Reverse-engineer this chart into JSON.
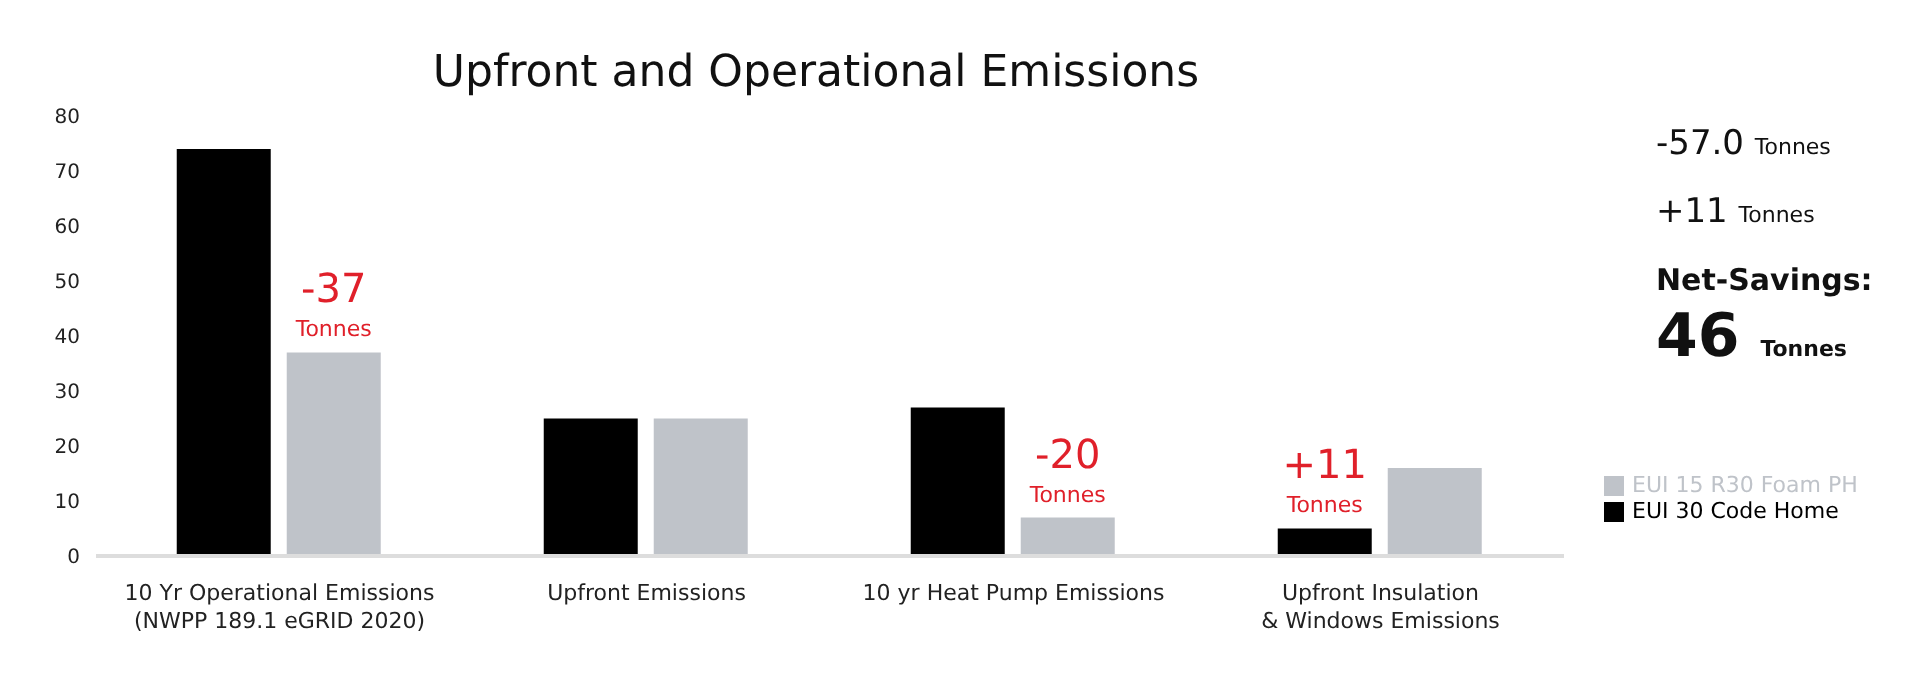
{
  "chart_data": {
    "type": "bar",
    "title": "Upfront and Operational Emissions",
    "categories": [
      "10 Yr Operational Emissions\n(NWPP 189.1 eGRID 2020)",
      "Upfront Emissions",
      "10 yr Heat Pump Emissions",
      "Upfront Insulation\n& Windows Emissions"
    ],
    "series": [
      {
        "name": "EUI 30 Code Home",
        "color": "#000000",
        "values": [
          74,
          25,
          27,
          5
        ]
      },
      {
        "name": "EUI 15 R30 Foam PH",
        "color": "#bfc3c9",
        "values": [
          37,
          25,
          7,
          16
        ]
      }
    ],
    "ylim": [
      0,
      80
    ],
    "yticks": [
      0,
      10,
      20,
      30,
      40,
      50,
      60,
      70,
      80
    ],
    "grid": false,
    "legend": "right",
    "annotations": [
      {
        "text": "-37\nTonnes",
        "x": "10 Yr Operational Emissions\n(NWPP 189.1 eGRID 2020)",
        "y": 37
      },
      {
        "text": "-20\nTonnes",
        "x": "10 yr Heat Pump Emissions",
        "y": 7
      },
      {
        "text": "+11\nTonnes",
        "x": "Upfront Insulation\n& Windows Emissions",
        "y": 5
      },
      "-57.0 Tonnes",
      "+11 Tonnes",
      "Net-Savings:",
      "46 Tonnes"
    ]
  }
}
